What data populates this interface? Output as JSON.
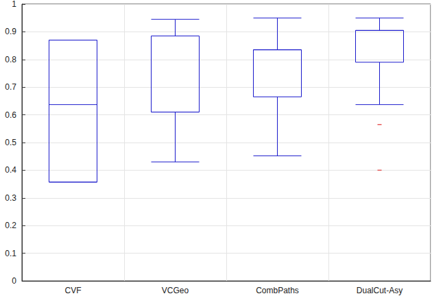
{
  "chart_data": {
    "type": "boxplot",
    "categories": [
      "CVF",
      "VCGeo",
      "CombPaths",
      "DualCut-Asy"
    ],
    "boxes": [
      {
        "min": 0.357,
        "q1": 0.357,
        "median": 0.637,
        "q3": 0.87,
        "max": 0.87
      },
      {
        "min": 0.43,
        "q1": 0.61,
        "median": 0.61,
        "q3": 0.885,
        "max": 0.945
      },
      {
        "min": 0.452,
        "q1": 0.665,
        "median": 0.835,
        "q3": 0.835,
        "max": 0.95
      },
      {
        "min": 0.637,
        "q1": 0.79,
        "median": 0.905,
        "q3": 0.905,
        "max": 0.95
      }
    ],
    "color": "#1a1acc",
    "outliers": {
      "color": "#e03030",
      "points": [
        {
          "category": "DualCut-Asy",
          "value": 0.565
        },
        {
          "category": "DualCut-Asy",
          "value": 0.4
        }
      ]
    },
    "ylim": [
      0,
      1
    ],
    "yticks": [
      0,
      0.1,
      0.2,
      0.3,
      0.4,
      0.5,
      0.6,
      0.7,
      0.8,
      0.9,
      1
    ],
    "grid": true
  }
}
